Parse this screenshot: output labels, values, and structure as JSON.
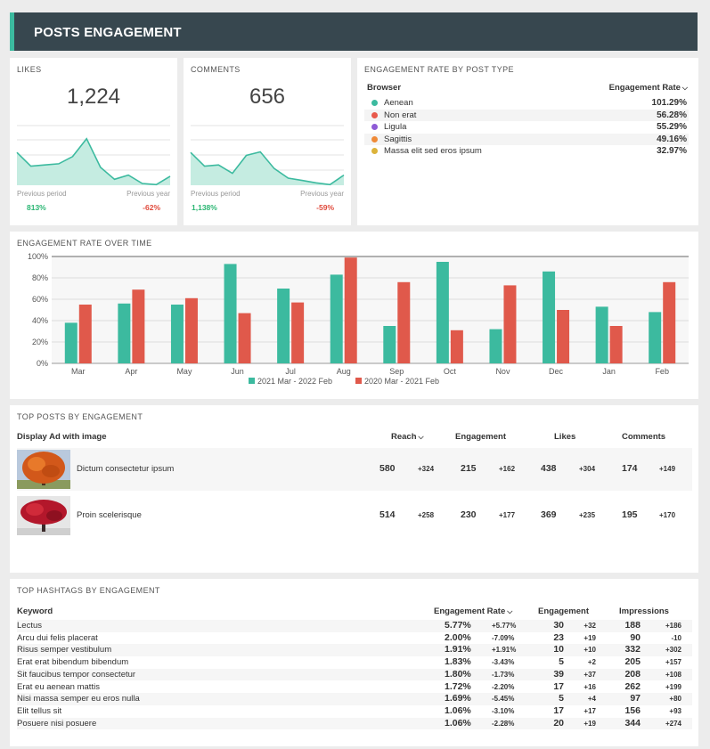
{
  "header": {
    "title": "POSTS ENGAGEMENT"
  },
  "likes": {
    "title": "LIKES",
    "value": "1,224",
    "trend": [
      0.55,
      0.32,
      0.34,
      0.36,
      0.48,
      0.78,
      0.3,
      0.1,
      0.17,
      0.03,
      0.01,
      0.15
    ],
    "prev_period_label": "Previous period",
    "prev_year_label": "Previous year",
    "prev_period_value": "813%",
    "prev_year_value": "-62%"
  },
  "comments": {
    "title": "COMMENTS",
    "value": "656",
    "trend": [
      0.55,
      0.32,
      0.34,
      0.2,
      0.5,
      0.56,
      0.28,
      0.12,
      0.08,
      0.04,
      0.01,
      0.17
    ],
    "prev_period_label": "Previous period",
    "prev_year_label": "Previous year",
    "prev_period_value": "1,138%",
    "prev_year_value": "-59%"
  },
  "engagement_by_type": {
    "title": "ENGAGEMENT RATE BY POST TYPE",
    "col_browser": "Browser",
    "col_rate": "Engagement Rate",
    "sort_icon": "chevron-down-icon",
    "rows": [
      {
        "name": "Aenean",
        "value": "101.29%",
        "color": "#3cba9f"
      },
      {
        "name": "Non erat",
        "value": "56.28%",
        "color": "#e8594b"
      },
      {
        "name": "Ligula",
        "value": "55.29%",
        "color": "#8e5bd6"
      },
      {
        "name": "Sagittis",
        "value": "49.16%",
        "color": "#ef8a38"
      },
      {
        "name": "Massa elit sed eros ipsum",
        "value": "32.97%",
        "color": "#dcb33a"
      }
    ]
  },
  "rate_over_time": {
    "title": "ENGAGEMENT RATE OVER TIME"
  },
  "chart_data": {
    "type": "bar",
    "title": "ENGAGEMENT RATE OVER TIME",
    "categories": [
      "Mar",
      "Apr",
      "May",
      "Jun",
      "Jul",
      "Aug",
      "Sep",
      "Oct",
      "Nov",
      "Dec",
      "Jan",
      "Feb"
    ],
    "series": [
      {
        "name": "2021 Mar - 2022 Feb",
        "color": "#3cba9f",
        "values": [
          38,
          56,
          55,
          93,
          70,
          83,
          35,
          95,
          32,
          86,
          53,
          48
        ]
      },
      {
        "name": "2020 Mar - 2021 Feb",
        "color": "#e0594b",
        "values": [
          55,
          69,
          61,
          47,
          57,
          99,
          76,
          31,
          73,
          50,
          35,
          76
        ]
      }
    ],
    "y_ticks": [
      "0%",
      "20%",
      "40%",
      "60%",
      "80%",
      "100%"
    ],
    "ylim": [
      0,
      100
    ],
    "grid": true,
    "legend": "bottom"
  },
  "top_posts": {
    "title": "TOP POSTS BY ENGAGEMENT",
    "col_title": "Display Ad with image",
    "col_reach": "Reach",
    "col_engagement": "Engagement",
    "col_likes": "Likes",
    "col_comments": "Comments",
    "rows": [
      {
        "image": "orange-tree-image",
        "name": "Dictum consectetur ipsum",
        "reach": "580",
        "reach_d": "+324",
        "eng": "215",
        "eng_d": "+162",
        "likes": "438",
        "likes_d": "+304",
        "comments": "174",
        "comments_d": "+149"
      },
      {
        "image": "red-tree-image",
        "name": "Proin scelerisque",
        "reach": "514",
        "reach_d": "+258",
        "eng": "230",
        "eng_d": "+177",
        "likes": "369",
        "likes_d": "+235",
        "comments": "195",
        "comments_d": "+170"
      }
    ]
  },
  "top_hashtags": {
    "title": "TOP HASHTAGS BY ENGAGEMENT",
    "col_keyword": "Keyword",
    "col_rate": "Engagement Rate",
    "col_engagement": "Engagement",
    "col_impressions": "Impressions",
    "rows": [
      {
        "k": "Lectus",
        "r": "5.77%",
        "rd": "+5.77%",
        "rpos": true,
        "e": "30",
        "ed": "+32",
        "epos": true,
        "i": "188",
        "id": "+186",
        "ipos": true
      },
      {
        "k": "Arcu dui felis placerat",
        "r": "2.00%",
        "rd": "-7.09%",
        "rpos": false,
        "e": "23",
        "ed": "+19",
        "epos": true,
        "i": "90",
        "id": "-10",
        "ipos": false
      },
      {
        "k": "Risus semper vestibulum",
        "r": "1.91%",
        "rd": "+1.91%",
        "rpos": true,
        "e": "10",
        "ed": "+10",
        "epos": true,
        "i": "332",
        "id": "+302",
        "ipos": true
      },
      {
        "k": "Erat erat bibendum bibendum",
        "r": "1.83%",
        "rd": "-3.43%",
        "rpos": false,
        "e": "5",
        "ed": "+2",
        "epos": true,
        "i": "205",
        "id": "+157",
        "ipos": true
      },
      {
        "k": "Sit faucibus tempor consectetur",
        "r": "1.80%",
        "rd": "-1.73%",
        "rpos": false,
        "e": "39",
        "ed": "+37",
        "epos": true,
        "i": "208",
        "id": "+108",
        "ipos": true
      },
      {
        "k": "Erat eu aenean mattis",
        "r": "1.72%",
        "rd": "-2.20%",
        "rpos": false,
        "e": "17",
        "ed": "+16",
        "epos": true,
        "i": "262",
        "id": "+199",
        "ipos": true
      },
      {
        "k": "Nisi massa semper eu eros nulla",
        "r": "1.69%",
        "rd": "-5.45%",
        "rpos": false,
        "e": "5",
        "ed": "+4",
        "epos": true,
        "i": "97",
        "id": "+80",
        "ipos": true
      },
      {
        "k": "Elit tellus sit",
        "r": "1.06%",
        "rd": "-3.10%",
        "rpos": false,
        "e": "17",
        "ed": "+17",
        "epos": true,
        "i": "156",
        "id": "+93",
        "ipos": true
      },
      {
        "k": "Posuere nisi posuere",
        "r": "1.06%",
        "rd": "-2.28%",
        "rpos": false,
        "e": "20",
        "ed": "+19",
        "epos": true,
        "i": "344",
        "id": "+274",
        "ipos": true
      }
    ]
  }
}
